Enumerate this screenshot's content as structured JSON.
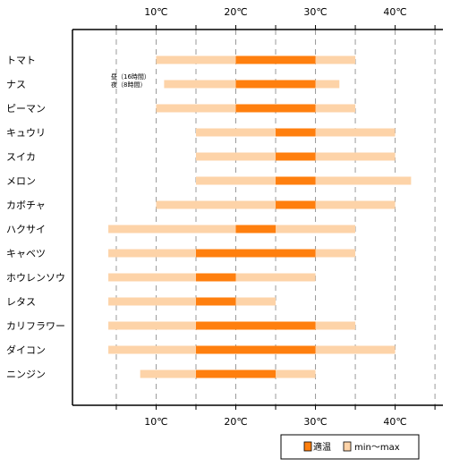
{
  "chart_data": {
    "type": "bar",
    "orientation": "horizontal",
    "stacked_ranges": true,
    "x_unit": "℃",
    "xlim": [
      -0.5,
      46
    ],
    "major_ticks": [
      10,
      20,
      30,
      40
    ],
    "minor_ticks": [
      5,
      15,
      25,
      35,
      45
    ],
    "grid": "vertical-dashed",
    "tick_labels": [
      "10℃",
      "20℃",
      "30℃",
      "40℃"
    ],
    "categories": [
      "トマト",
      "ナス",
      "ピーマン",
      "キュウリ",
      "スイカ",
      "メロン",
      "カボチャ",
      "ハクサイ",
      "キャベツ",
      "ホウレンソウ",
      "レタス",
      "カリフラワー",
      "ダイコン",
      "ニンジン"
    ],
    "series": [
      {
        "name": "min～max",
        "color": "#fdd3a8",
        "ranges": [
          [
            10,
            35
          ],
          [
            11,
            33
          ],
          [
            10,
            35
          ],
          [
            15,
            40
          ],
          [
            15,
            40
          ],
          [
            15,
            42
          ],
          [
            10,
            40
          ],
          [
            4,
            35
          ],
          [
            4,
            35
          ],
          [
            4,
            30
          ],
          [
            4,
            25
          ],
          [
            4,
            35
          ],
          [
            4,
            40
          ],
          [
            8,
            30
          ]
        ]
      },
      {
        "name": "適温",
        "color": "#ff7f0e",
        "ranges": [
          [
            20,
            30
          ],
          [
            20,
            30
          ],
          [
            20,
            30
          ],
          [
            25,
            30
          ],
          [
            25,
            30
          ],
          [
            25,
            30
          ],
          [
            25,
            30
          ],
          [
            20,
            25
          ],
          [
            15,
            30
          ],
          [
            15,
            20
          ],
          [
            15,
            20
          ],
          [
            15,
            30
          ],
          [
            15,
            30
          ],
          [
            15,
            25
          ]
        ]
      }
    ],
    "annotation": {
      "category": "ナス",
      "lines": [
        "昼（16時間）",
        "夜（8時間）"
      ]
    },
    "legend": {
      "position": "bottom-right",
      "items": [
        {
          "label": "適温",
          "color": "#ff7f0e"
        },
        {
          "label": "min～max",
          "color": "#fdd3a8"
        }
      ]
    }
  }
}
